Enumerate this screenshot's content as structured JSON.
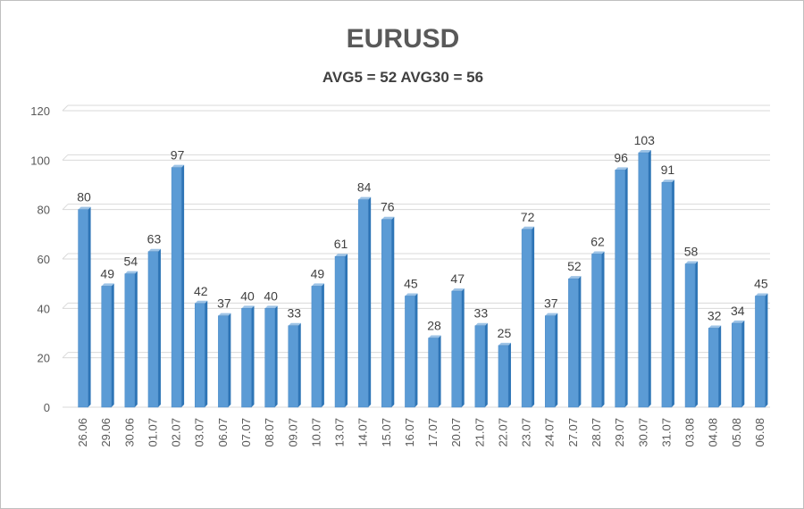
{
  "chart_data": {
    "type": "bar",
    "title": "EURUSD",
    "subtitle": "AVG5 = 52 AVG30 = 56",
    "categories": [
      "26.06",
      "29.06",
      "30.06",
      "01.07",
      "02.07",
      "03.07",
      "06.07",
      "07.07",
      "08.07",
      "09.07",
      "10.07",
      "13.07",
      "14.07",
      "15.07",
      "16.07",
      "17.07",
      "20.07",
      "21.07",
      "22.07",
      "23.07",
      "24.07",
      "27.07",
      "28.07",
      "29.07",
      "30.07",
      "31.07",
      "03.08",
      "04.08",
      "05.08",
      "06.08"
    ],
    "values": [
      80,
      49,
      54,
      63,
      97,
      42,
      37,
      40,
      40,
      33,
      49,
      61,
      84,
      76,
      45,
      28,
      47,
      33,
      25,
      72,
      37,
      52,
      62,
      96,
      103,
      91,
      58,
      32,
      34,
      45
    ],
    "ylim": [
      0,
      120
    ],
    "yticks": [
      0,
      20,
      40,
      60,
      80,
      100,
      120
    ],
    "grid": true,
    "legend": "none",
    "colors": {
      "bar_front": "#5b9bd5",
      "bar_side": "#2e75b6",
      "bar_top": "#9dc3e6",
      "grid": "#d9d9d9"
    }
  }
}
